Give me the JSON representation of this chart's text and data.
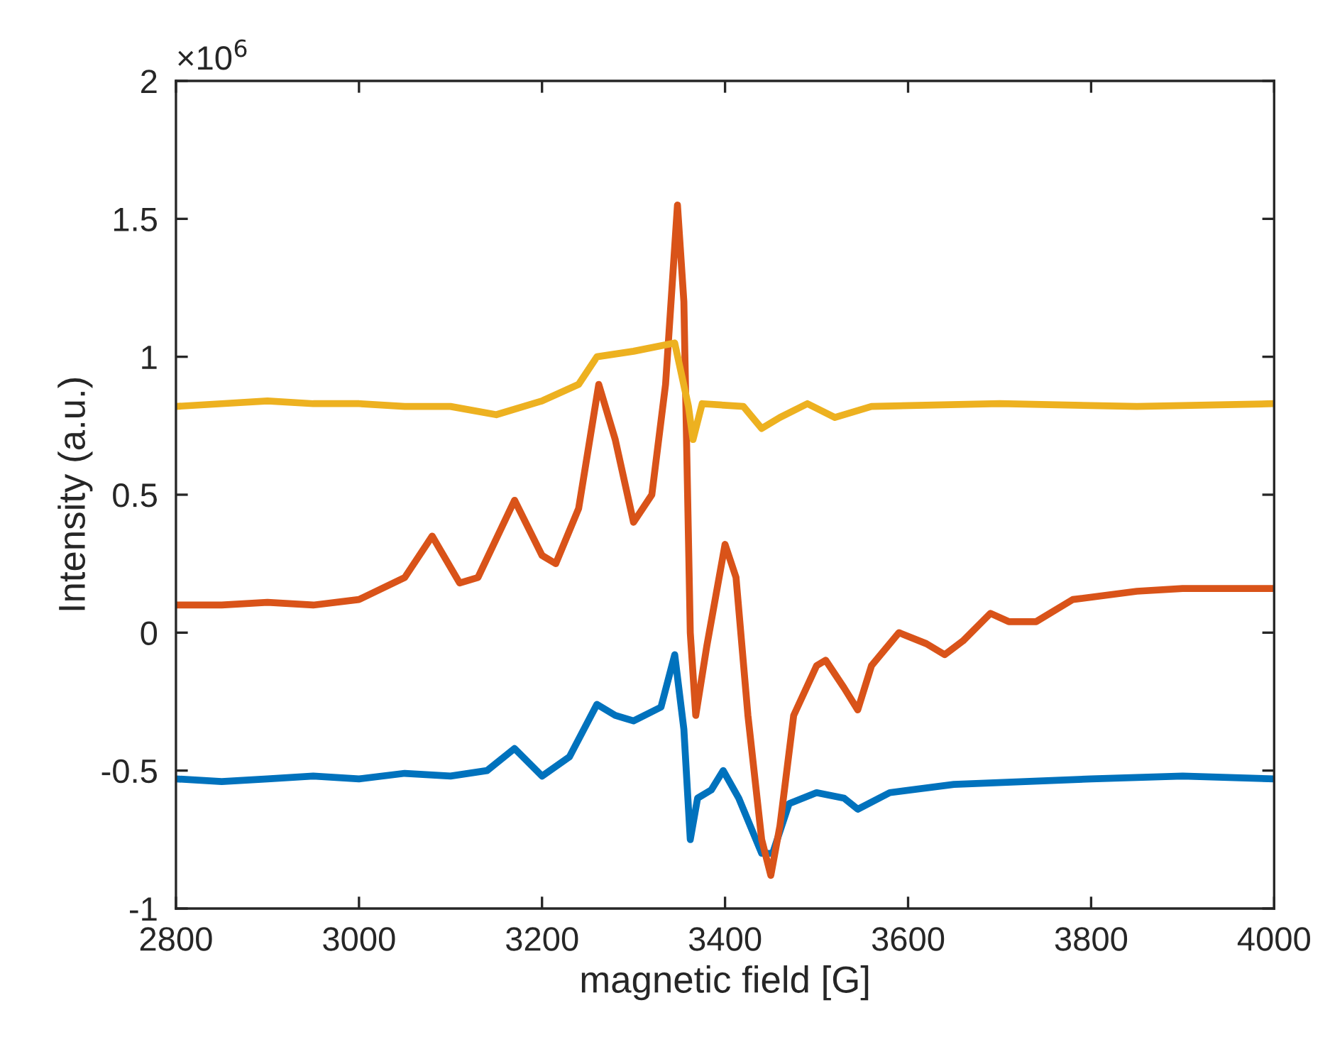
{
  "chart_data": {
    "type": "line",
    "xlabel": "magnetic field [G]",
    "ylabel": "Intensity (a.u.)",
    "annotations": [
      "×10$^{6}$"
    ],
    "xlim": [
      2800,
      4000
    ],
    "xticks": [
      2800,
      3000,
      3200,
      3400,
      3600,
      3800,
      4000
    ],
    "ylim": [
      -1,
      2
    ],
    "yticks": [
      -1,
      -0.5,
      0,
      0.5,
      1,
      1.5,
      2
    ],
    "grid": false,
    "marker": "none",
    "line_style": "solid",
    "series": [
      {
        "color": "#0072bd",
        "x": [
          2800,
          2850,
          2900,
          2950,
          3000,
          3050,
          3100,
          3140,
          3170,
          3200,
          3230,
          3260,
          3280,
          3300,
          3330,
          3345,
          3355,
          3362,
          3370,
          3385,
          3398,
          3415,
          3440,
          3452,
          3470,
          3500,
          3530,
          3545,
          3580,
          3650,
          3800,
          3900,
          4000
        ],
        "values": [
          -0.53,
          -0.54,
          -0.53,
          -0.52,
          -0.53,
          -0.51,
          -0.52,
          -0.5,
          -0.42,
          -0.52,
          -0.45,
          -0.26,
          -0.3,
          -0.32,
          -0.27,
          -0.08,
          -0.35,
          -0.75,
          -0.6,
          -0.57,
          -0.5,
          -0.6,
          -0.8,
          -0.8,
          -0.62,
          -0.58,
          -0.6,
          -0.64,
          -0.58,
          -0.55,
          -0.53,
          -0.52,
          -0.53
        ]
      },
      {
        "color": "#d95319",
        "x": [
          2800,
          2850,
          2900,
          2950,
          3000,
          3050,
          3080,
          3110,
          3130,
          3170,
          3200,
          3215,
          3240,
          3262,
          3280,
          3300,
          3320,
          3335,
          3348,
          3355,
          3362,
          3368,
          3380,
          3400,
          3412,
          3425,
          3440,
          3450,
          3460,
          3475,
          3500,
          3510,
          3530,
          3545,
          3560,
          3590,
          3620,
          3640,
          3660,
          3690,
          3710,
          3740,
          3780,
          3850,
          3900,
          4000
        ],
        "values": [
          0.1,
          0.1,
          0.11,
          0.1,
          0.12,
          0.2,
          0.35,
          0.18,
          0.2,
          0.48,
          0.28,
          0.25,
          0.45,
          0.9,
          0.7,
          0.4,
          0.5,
          0.9,
          1.55,
          1.2,
          0.0,
          -0.3,
          -0.05,
          0.32,
          0.2,
          -0.3,
          -0.75,
          -0.88,
          -0.7,
          -0.3,
          -0.12,
          -0.1,
          -0.2,
          -0.28,
          -0.12,
          0.0,
          -0.04,
          -0.08,
          -0.03,
          0.07,
          0.04,
          0.04,
          0.12,
          0.15,
          0.16,
          0.16
        ]
      },
      {
        "color": "#edb120",
        "x": [
          2800,
          2850,
          2900,
          2950,
          3000,
          3050,
          3100,
          3150,
          3200,
          3240,
          3260,
          3300,
          3345,
          3360,
          3365,
          3375,
          3420,
          3440,
          3460,
          3490,
          3520,
          3560,
          3700,
          3850,
          4000
        ],
        "values": [
          0.82,
          0.83,
          0.84,
          0.83,
          0.83,
          0.82,
          0.82,
          0.79,
          0.84,
          0.9,
          1.0,
          1.02,
          1.05,
          0.82,
          0.7,
          0.83,
          0.82,
          0.74,
          0.78,
          0.83,
          0.78,
          0.82,
          0.83,
          0.82,
          0.83
        ]
      }
    ]
  }
}
